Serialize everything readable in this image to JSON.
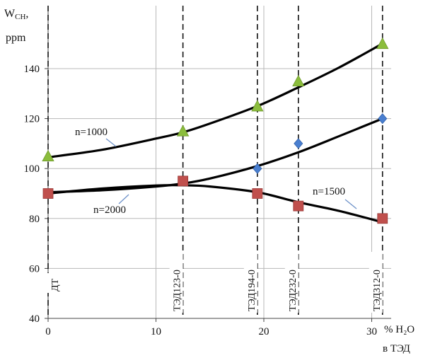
{
  "chart_data": {
    "type": "scatter",
    "ylabel_line1": "W",
    "ylabel_sub": "CH",
    "ylabel_line2": "ppm",
    "xlabel_line1": "% H₂O",
    "xlabel_line2": "в ТЭД",
    "xlim": [
      0,
      31.5
    ],
    "ylim": [
      40,
      155
    ],
    "xticks": [
      0,
      10,
      20,
      30
    ],
    "yticks": [
      40,
      60,
      80,
      100,
      120,
      140
    ],
    "grid": true,
    "series": [
      {
        "name": "n=1000",
        "marker": "triangle",
        "color": "#8bbd3c",
        "x": [
          0,
          12.5,
          19.4,
          23.2,
          31
        ],
        "y": [
          105,
          115,
          125,
          135,
          150
        ]
      },
      {
        "name": "n=1500",
        "marker": "diamond",
        "color": "#4a7fd0",
        "x": [
          0,
          12.5,
          19.4,
          23.2,
          31
        ],
        "y": [
          90,
          95,
          100,
          110,
          120
        ]
      },
      {
        "name": "n=2000",
        "marker": "square",
        "color": "#c0504d",
        "x": [
          0,
          12.5,
          19.4,
          23.2,
          31
        ],
        "y": [
          90,
          95,
          90,
          85,
          80
        ]
      }
    ],
    "fit_curves": [
      {
        "label": "n=1000",
        "x": [
          0,
          5,
          10,
          12.5,
          15,
          19.4,
          23.2,
          27,
          31
        ],
        "y": [
          104.5,
          107.5,
          112,
          114.5,
          118,
          125,
          132.5,
          140.5,
          150
        ]
      },
      {
        "label": "n=1500",
        "x": [
          0,
          5,
          10,
          12.5,
          15,
          19.4,
          23.2,
          27,
          31
        ],
        "y": [
          90.5,
          91.3,
          92.8,
          94,
          96,
          101,
          106.5,
          113,
          120
        ]
      },
      {
        "label": "n=2000",
        "x": [
          0,
          5,
          10,
          12.5,
          15,
          19.4,
          23.2,
          27,
          31
        ],
        "y": [
          90,
          92,
          93.2,
          93.3,
          92.8,
          90.5,
          86.5,
          83,
          78.5
        ]
      }
    ],
    "vertical_markers": [
      {
        "x": 0,
        "label": "ДТ"
      },
      {
        "x": 12.5,
        "label": "ТЭД123-0"
      },
      {
        "x": 19.4,
        "label": "ТЭД194-0"
      },
      {
        "x": 23.2,
        "label": "ТЭД232-0"
      },
      {
        "x": 31,
        "label": "ТЭД312-0"
      }
    ]
  }
}
